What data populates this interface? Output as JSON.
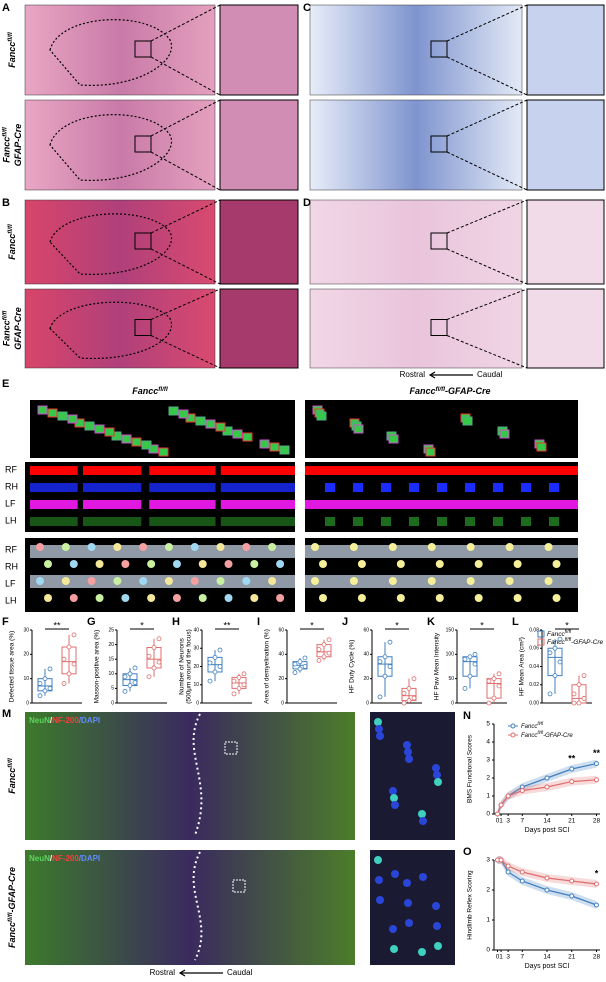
{
  "panel_labels": [
    "A",
    "B",
    "C",
    "D",
    "E",
    "F",
    "G",
    "H",
    "I",
    "J",
    "K",
    "L",
    "M",
    "N",
    "O"
  ],
  "genotypes": {
    "control": {
      "base": "Fancc",
      "sup": "fl/fl"
    },
    "cko": {
      "base": "Fancc",
      "sup": "fl/fl",
      "tail": "GFAP-Cre"
    },
    "cko_inline": {
      "base": "Fancc",
      "sup": "fl/fl",
      "tail": "-GFAP-Cre"
    }
  },
  "orientation": {
    "rostral": "Rostral",
    "caudal": "Caudal"
  },
  "gait_limbs": [
    "RF",
    "RH",
    "LF",
    "LH"
  ],
  "stain_parts": [
    {
      "text": "NeuN",
      "color": "#5bd65b"
    },
    {
      "text": "/",
      "color": "#ffffff"
    },
    {
      "text": "NF-200",
      "color": "#ff3b3b"
    },
    {
      "text": "/DAPI",
      "color": "#5f8cff"
    }
  ],
  "box_charts": [
    {
      "ylabel": [
        "Defected tissue area (%)"
      ],
      "ylim": [
        0,
        30
      ],
      "yticks": [
        0,
        10,
        20,
        30
      ],
      "sig": "**",
      "groups": [
        {
          "color": "#3f7fc1",
          "box": [
            3,
            5,
            7,
            10,
            14
          ],
          "points": [
            3,
            5,
            6,
            8,
            10,
            14
          ]
        },
        {
          "color": "#e06d6d",
          "box": [
            8,
            12,
            17,
            23,
            28
          ],
          "points": [
            8,
            12,
            16,
            18,
            23,
            28
          ]
        }
      ]
    },
    {
      "ylabel": [
        "Masson-positive area (%)"
      ],
      "ylim": [
        0,
        25
      ],
      "yticks": [
        0,
        5,
        10,
        15,
        20,
        25
      ],
      "sig": "*",
      "groups": [
        {
          "color": "#3f7fc1",
          "box": [
            4,
            6,
            8,
            10,
            12
          ],
          "points": [
            4,
            6,
            7,
            9,
            10,
            12
          ]
        },
        {
          "color": "#e06d6d",
          "box": [
            9,
            12,
            15,
            19,
            22
          ],
          "points": [
            9,
            12,
            14,
            16,
            19,
            22
          ]
        }
      ]
    },
    {
      "ylabel": [
        "Number of Neurons",
        "(500μm around the focus)"
      ],
      "ylim": [
        0,
        40
      ],
      "yticks": [
        0,
        10,
        20,
        30,
        40
      ],
      "sig": "**",
      "groups": [
        {
          "color": "#3f7fc1",
          "box": [
            12,
            17,
            21,
            25,
            29
          ],
          "points": [
            12,
            17,
            20,
            22,
            25,
            29
          ]
        },
        {
          "color": "#e06d6d",
          "box": [
            5,
            8,
            11,
            14,
            16
          ],
          "points": [
            5,
            8,
            10,
            12,
            14,
            16
          ]
        }
      ]
    },
    {
      "ylabel": [
        "Area of demyelination (%)"
      ],
      "ylim": [
        0,
        60
      ],
      "yticks": [
        0,
        20,
        40,
        60
      ],
      "sig": "*",
      "groups": [
        {
          "color": "#3f7fc1",
          "box": [
            25,
            28,
            31,
            34,
            37
          ],
          "points": [
            25,
            28,
            30,
            32,
            34,
            37
          ]
        },
        {
          "color": "#e06d6d",
          "box": [
            35,
            38,
            42,
            48,
            52
          ],
          "points": [
            35,
            38,
            41,
            44,
            48,
            52
          ]
        }
      ]
    },
    {
      "ylabel": [
        "HF Duty Cycle (%)"
      ],
      "ylim": [
        0,
        60
      ],
      "yticks": [
        0,
        20,
        40,
        60
      ],
      "sig": "*",
      "groups": [
        {
          "color": "#3f7fc1",
          "box": [
            5,
            22,
            32,
            38,
            50
          ],
          "points": [
            5,
            22,
            30,
            34,
            38,
            50
          ]
        },
        {
          "color": "#e06d6d",
          "box": [
            0,
            2,
            6,
            12,
            20
          ],
          "points": [
            0,
            2,
            4,
            8,
            12,
            20
          ]
        }
      ]
    },
    {
      "ylabel": [
        "HF Paw Mean Intensity"
      ],
      "ylim": [
        0,
        150
      ],
      "yticks": [
        0,
        50,
        100,
        150
      ],
      "sig": "*",
      "groups": [
        {
          "color": "#3f7fc1",
          "box": [
            30,
            55,
            85,
            95,
            100
          ],
          "points": [
            30,
            55,
            80,
            90,
            95,
            100
          ]
        },
        {
          "color": "#e06d6d",
          "box": [
            0,
            10,
            40,
            50,
            60
          ],
          "points": [
            0,
            10,
            35,
            45,
            50,
            60
          ]
        }
      ]
    },
    {
      "ylabel": [
        "HF Mean Area (cm²)"
      ],
      "ylim": [
        0,
        0.08
      ],
      "yticks": [
        {
          "value": 0,
          "label": "0.00"
        },
        {
          "value": 0.02,
          "label": "0.02"
        },
        {
          "value": 0.04,
          "label": "0.04"
        },
        {
          "value": 0.06,
          "label": "0.06"
        },
        {
          "value": 0.08,
          "label": "0.08"
        }
      ],
      "sig": "*",
      "groups": [
        {
          "color": "#3f7fc1",
          "box": [
            0.01,
            0.03,
            0.05,
            0.06,
            0.07
          ],
          "points": [
            0.01,
            0.03,
            0.045,
            0.055,
            0.06,
            0.07
          ]
        },
        {
          "color": "#e06d6d",
          "box": [
            0,
            0,
            0.005,
            0.02,
            0.03
          ],
          "points": [
            0,
            0,
            0.005,
            0.01,
            0.02,
            0.03
          ]
        }
      ]
    }
  ],
  "line_charts": [
    {
      "ylabel": "BMS Functional Scores",
      "xlabel": "Days post SCI",
      "xlim": [
        -1,
        29
      ],
      "xticks": [
        0,
        1,
        3,
        7,
        14,
        21,
        28
      ],
      "ylim": [
        0,
        5
      ],
      "yticks": [
        0,
        1,
        2,
        3,
        4,
        5
      ],
      "x": [
        0,
        1,
        3,
        7,
        14,
        21,
        28
      ],
      "series": [
        {
          "color": "#3f7fc1",
          "values": [
            0,
            0.5,
            1,
            1.5,
            2,
            2.5,
            2.8
          ]
        },
        {
          "color": "#e06d6d",
          "values": [
            0,
            0.5,
            1,
            1.3,
            1.5,
            1.8,
            1.9
          ]
        }
      ],
      "annotations": [
        {
          "x": 21,
          "text": "**"
        },
        {
          "x": 28,
          "text": "**"
        }
      ]
    },
    {
      "ylabel": "Hindlimb Reflex Scoring",
      "xlabel": "Days post SCI",
      "xlim": [
        -1,
        29
      ],
      "xticks": [
        0,
        1,
        3,
        7,
        14,
        21,
        28
      ],
      "ylim": [
        0,
        3
      ],
      "yticks": [
        0,
        1,
        2,
        3
      ],
      "x": [
        0,
        1,
        3,
        7,
        14,
        21,
        28
      ],
      "series": [
        {
          "color": "#3f7fc1",
          "values": [
            3,
            3,
            2.6,
            2.3,
            2,
            1.8,
            1.5
          ]
        },
        {
          "color": "#e06d6d",
          "values": [
            3,
            3,
            2.8,
            2.6,
            2.4,
            2.3,
            2.2
          ]
        }
      ],
      "annotations": [
        {
          "x": 28,
          "text": "*"
        }
      ]
    }
  ]
}
